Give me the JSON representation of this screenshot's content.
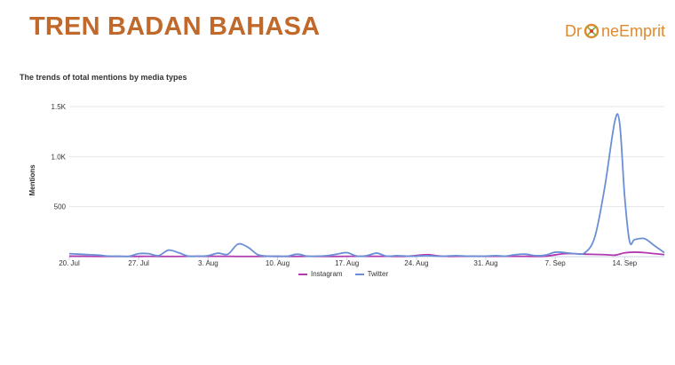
{
  "slide": {
    "title": "TREN BADAN BAHASA"
  },
  "logo": {
    "part1": "Dr",
    "part2": "neEmprit"
  },
  "chart_data": {
    "type": "line",
    "title": "The trends of total mentions by media types",
    "xlabel": "",
    "ylabel": "Mentions",
    "ylim": [
      0,
      1500
    ],
    "y_ticks": [
      {
        "value": 500,
        "label": "500"
      },
      {
        "value": 1000,
        "label": "1.0K"
      },
      {
        "value": 1500,
        "label": "1.5K"
      }
    ],
    "x_ticks": [
      {
        "day": 0,
        "label": "20. Jul"
      },
      {
        "day": 7,
        "label": "27. Jul"
      },
      {
        "day": 14,
        "label": "3. Aug"
      },
      {
        "day": 21,
        "label": "10. Aug"
      },
      {
        "day": 28,
        "label": "17. Aug"
      },
      {
        "day": 35,
        "label": "24. Aug"
      },
      {
        "day": 42,
        "label": "31. Aug"
      },
      {
        "day": 49,
        "label": "7. Sep"
      },
      {
        "day": 56,
        "label": "14. Sep"
      }
    ],
    "x_range": [
      0,
      60
    ],
    "grid": true,
    "legend_position": "bottom-center",
    "series": [
      {
        "name": "Instagram",
        "color": "#b03ab0",
        "points": [
          [
            0,
            5
          ],
          [
            2,
            3
          ],
          [
            4,
            2
          ],
          [
            6,
            2
          ],
          [
            8,
            3
          ],
          [
            10,
            2
          ],
          [
            12,
            3
          ],
          [
            14,
            4
          ],
          [
            16,
            3
          ],
          [
            18,
            2
          ],
          [
            20,
            3
          ],
          [
            22,
            2
          ],
          [
            24,
            3
          ],
          [
            26,
            2
          ],
          [
            28,
            3
          ],
          [
            30,
            4
          ],
          [
            32,
            3
          ],
          [
            34,
            4
          ],
          [
            36,
            20
          ],
          [
            37,
            10
          ],
          [
            38,
            3
          ],
          [
            40,
            4
          ],
          [
            42,
            3
          ],
          [
            44,
            4
          ],
          [
            46,
            3
          ],
          [
            48,
            5
          ],
          [
            50,
            30
          ],
          [
            52,
            25
          ],
          [
            54,
            20
          ],
          [
            55,
            15
          ],
          [
            56,
            38
          ],
          [
            57,
            45
          ],
          [
            58,
            40
          ],
          [
            59,
            30
          ],
          [
            60,
            20
          ]
        ]
      },
      {
        "name": "Twitter",
        "color": "#6b8fd6",
        "points": [
          [
            0,
            30
          ],
          [
            1,
            25
          ],
          [
            2,
            20
          ],
          [
            3,
            15
          ],
          [
            4,
            5
          ],
          [
            5,
            5
          ],
          [
            6,
            3
          ],
          [
            7,
            30
          ],
          [
            8,
            30
          ],
          [
            9,
            10
          ],
          [
            10,
            65
          ],
          [
            11,
            40
          ],
          [
            12,
            5
          ],
          [
            13,
            5
          ],
          [
            14,
            10
          ],
          [
            15,
            35
          ],
          [
            16,
            25
          ],
          [
            17,
            125
          ],
          [
            18,
            95
          ],
          [
            19,
            20
          ],
          [
            20,
            5
          ],
          [
            21,
            5
          ],
          [
            22,
            5
          ],
          [
            23,
            25
          ],
          [
            24,
            5
          ],
          [
            25,
            5
          ],
          [
            26,
            10
          ],
          [
            27,
            25
          ],
          [
            28,
            40
          ],
          [
            29,
            5
          ],
          [
            30,
            10
          ],
          [
            31,
            35
          ],
          [
            32,
            5
          ],
          [
            33,
            10
          ],
          [
            34,
            5
          ],
          [
            35,
            5
          ],
          [
            36,
            10
          ],
          [
            37,
            5
          ],
          [
            38,
            5
          ],
          [
            39,
            10
          ],
          [
            40,
            5
          ],
          [
            41,
            5
          ],
          [
            42,
            5
          ],
          [
            43,
            10
          ],
          [
            44,
            5
          ],
          [
            45,
            20
          ],
          [
            46,
            25
          ],
          [
            47,
            10
          ],
          [
            48,
            15
          ],
          [
            49,
            45
          ],
          [
            50,
            40
          ],
          [
            51,
            30
          ],
          [
            52,
            40
          ],
          [
            53,
            200
          ],
          [
            54,
            700
          ],
          [
            55,
            1350
          ],
          [
            55.5,
            1330
          ],
          [
            56,
            600
          ],
          [
            56.5,
            150
          ],
          [
            57,
            170
          ],
          [
            58,
            180
          ],
          [
            59,
            110
          ],
          [
            60,
            40
          ]
        ]
      }
    ]
  }
}
